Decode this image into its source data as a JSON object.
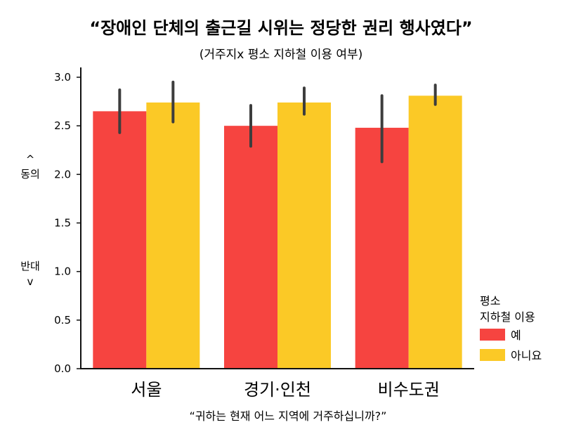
{
  "chart_data": {
    "type": "bar",
    "title": "“장애인 단체의 출근길 시위는 정당한 권리 행사였다”",
    "subtitle": "(거주지x 평소 지하철 이용 여부)",
    "xlabel": "“귀하는 현재 어느 지역에 거주하십니까?”",
    "ylabel_top": "동의",
    "ylabel_bottom": "반대",
    "ylabel_up_arrow": "^",
    "ylabel_down_arrow": "v",
    "ylim": [
      0,
      3.0
    ],
    "yticks": [
      "0.0",
      "0.5",
      "1.0",
      "1.5",
      "2.0",
      "2.5",
      "3.0"
    ],
    "categories": [
      "서울",
      "경기·인천",
      "비수도권"
    ],
    "legend_title_line1": "평소",
    "legend_title_line2": "지하철 이용",
    "legend_placement": "right",
    "grid": false,
    "series": [
      {
        "name": "예",
        "color": "#f64440",
        "values": [
          2.65,
          2.5,
          2.48
        ],
        "err_low": [
          2.43,
          2.29,
          2.13
        ],
        "err_high": [
          2.87,
          2.71,
          2.81
        ]
      },
      {
        "name": "아니요",
        "color": "#fbc926",
        "values": [
          2.74,
          2.74,
          2.81
        ],
        "err_low": [
          2.54,
          2.62,
          2.72
        ],
        "err_high": [
          2.95,
          2.89,
          2.92
        ]
      }
    ],
    "errorbar_color": "#3d3d3d",
    "axis_color": "#111111"
  }
}
